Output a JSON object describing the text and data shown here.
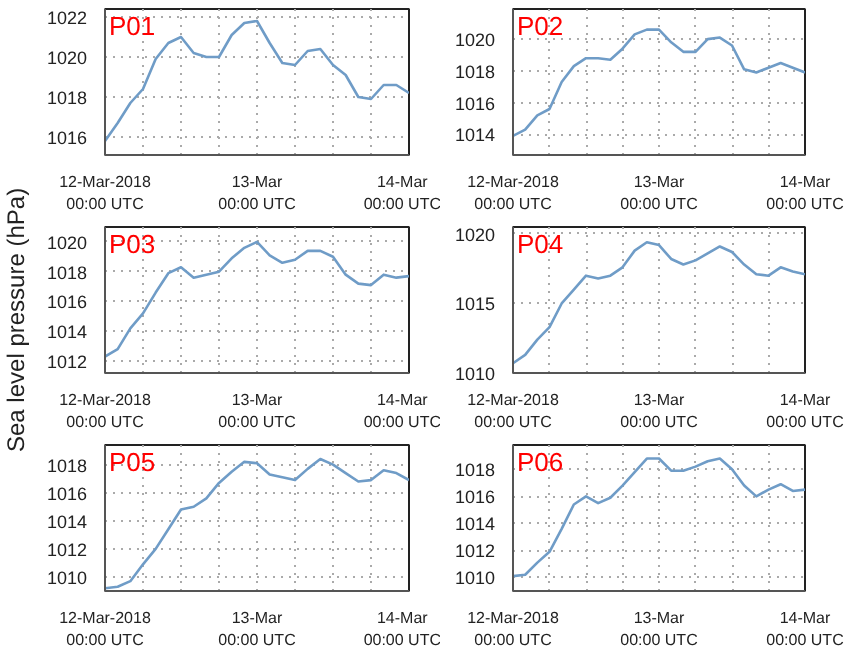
{
  "chart_data": [
    {
      "type": "line",
      "title": "P01",
      "x": [
        "2018-03-12T00:00",
        "2018-03-12T02:00",
        "2018-03-12T04:00",
        "2018-03-12T06:00",
        "2018-03-12T08:00",
        "2018-03-12T10:00",
        "2018-03-12T12:00",
        "2018-03-12T14:00",
        "2018-03-12T16:00",
        "2018-03-12T18:00",
        "2018-03-12T20:00",
        "2018-03-12T22:00",
        "2018-03-13T00:00",
        "2018-03-13T02:00",
        "2018-03-13T04:00",
        "2018-03-13T06:00",
        "2018-03-13T08:00",
        "2018-03-13T10:00",
        "2018-03-13T12:00",
        "2018-03-13T14:00",
        "2018-03-13T16:00",
        "2018-03-13T18:00",
        "2018-03-13T20:00",
        "2018-03-13T22:00",
        "2018-03-14T00:00"
      ],
      "xlim": [
        "2018-03-12T00:00",
        "2018-03-14T00:00"
      ],
      "xticks": [
        {
          "value": "2018-03-12T00:00",
          "label": "12-Mar-2018\n00:00 UTC"
        },
        {
          "value": "2018-03-12T06:00",
          "label": null
        },
        {
          "value": "2018-03-12T12:00",
          "label": null
        },
        {
          "value": "2018-03-12T18:00",
          "label": null
        },
        {
          "value": "2018-03-13T00:00",
          "label": "13-Mar\n00:00 UTC"
        },
        {
          "value": "2018-03-13T06:00",
          "label": null
        },
        {
          "value": "2018-03-13T12:00",
          "label": null
        },
        {
          "value": "2018-03-13T18:00",
          "label": null
        },
        {
          "value": "2018-03-14T00:00",
          "label": "14-Mar\n00:00 UTC"
        }
      ],
      "ylim": [
        1015.1,
        1022.4
      ],
      "yticks": [
        1016,
        1018,
        1020,
        1022
      ],
      "grid": true,
      "series": [
        {
          "color": "#6f9cc7",
          "values": [
            1015.8,
            1016.7,
            1017.7,
            1018.4,
            1019.9,
            1020.7,
            1021.0,
            1020.2,
            1020.0,
            1020.0,
            1021.1,
            1021.7,
            1021.8,
            1020.7,
            1019.7,
            1019.6,
            1020.3,
            1020.4,
            1019.6,
            1019.1,
            1018.0,
            1017.9,
            1018.6,
            1018.6,
            1018.2
          ]
        }
      ]
    },
    {
      "type": "line",
      "title": "P02",
      "x": [
        "2018-03-12T00:00",
        "2018-03-12T02:00",
        "2018-03-12T04:00",
        "2018-03-12T06:00",
        "2018-03-12T08:00",
        "2018-03-12T10:00",
        "2018-03-12T12:00",
        "2018-03-12T14:00",
        "2018-03-12T16:00",
        "2018-03-12T18:00",
        "2018-03-12T20:00",
        "2018-03-12T22:00",
        "2018-03-13T00:00",
        "2018-03-13T02:00",
        "2018-03-13T04:00",
        "2018-03-13T06:00",
        "2018-03-13T08:00",
        "2018-03-13T10:00",
        "2018-03-13T12:00",
        "2018-03-13T14:00",
        "2018-03-13T16:00",
        "2018-03-13T18:00",
        "2018-03-13T20:00",
        "2018-03-13T22:00",
        "2018-03-14T00:00"
      ],
      "xlim": [
        "2018-03-12T00:00",
        "2018-03-14T00:00"
      ],
      "xticks": [
        {
          "value": "2018-03-12T00:00",
          "label": "12-Mar-2018\n00:00 UTC"
        },
        {
          "value": "2018-03-12T06:00",
          "label": null
        },
        {
          "value": "2018-03-12T12:00",
          "label": null
        },
        {
          "value": "2018-03-12T18:00",
          "label": null
        },
        {
          "value": "2018-03-13T00:00",
          "label": "13-Mar\n00:00 UTC"
        },
        {
          "value": "2018-03-13T06:00",
          "label": null
        },
        {
          "value": "2018-03-13T12:00",
          "label": null
        },
        {
          "value": "2018-03-13T18:00",
          "label": null
        },
        {
          "value": "2018-03-14T00:00",
          "label": "14-Mar\n00:00 UTC"
        }
      ],
      "ylim": [
        1012.7,
        1021.9
      ],
      "yticks": [
        1014,
        1016,
        1018,
        1020
      ],
      "grid": true,
      "series": [
        {
          "color": "#6f9cc7",
          "values": [
            1013.9,
            1014.3,
            1015.2,
            1015.6,
            1017.3,
            1018.3,
            1018.8,
            1018.8,
            1018.7,
            1019.4,
            1020.3,
            1020.6,
            1020.6,
            1019.8,
            1019.2,
            1019.2,
            1020.0,
            1020.1,
            1019.6,
            1018.1,
            1017.9,
            1018.2,
            1018.5,
            1018.2,
            1017.9
          ]
        }
      ]
    },
    {
      "type": "line",
      "title": "P03",
      "ylabel": "Sea level pressure (hPa)",
      "x": [
        "2018-03-12T00:00",
        "2018-03-12T02:00",
        "2018-03-12T04:00",
        "2018-03-12T06:00",
        "2018-03-12T08:00",
        "2018-03-12T10:00",
        "2018-03-12T12:00",
        "2018-03-12T14:00",
        "2018-03-12T16:00",
        "2018-03-12T18:00",
        "2018-03-12T20:00",
        "2018-03-12T22:00",
        "2018-03-13T00:00",
        "2018-03-13T02:00",
        "2018-03-13T04:00",
        "2018-03-13T06:00",
        "2018-03-13T08:00",
        "2018-03-13T10:00",
        "2018-03-13T12:00",
        "2018-03-13T14:00",
        "2018-03-13T16:00",
        "2018-03-13T18:00",
        "2018-03-13T20:00",
        "2018-03-13T22:00",
        "2018-03-14T00:00"
      ],
      "xlim": [
        "2018-03-12T00:00",
        "2018-03-14T00:00"
      ],
      "xticks": [
        {
          "value": "2018-03-12T00:00",
          "label": "12-Mar-2018\n00:00 UTC"
        },
        {
          "value": "2018-03-12T06:00",
          "label": null
        },
        {
          "value": "2018-03-12T12:00",
          "label": null
        },
        {
          "value": "2018-03-12T18:00",
          "label": null
        },
        {
          "value": "2018-03-13T00:00",
          "label": "13-Mar\n00:00 UTC"
        },
        {
          "value": "2018-03-13T06:00",
          "label": null
        },
        {
          "value": "2018-03-13T12:00",
          "label": null
        },
        {
          "value": "2018-03-13T18:00",
          "label": null
        },
        {
          "value": "2018-03-14T00:00",
          "label": "14-Mar\n00:00 UTC"
        }
      ],
      "ylim": [
        1011.2,
        1021.0
      ],
      "yticks": [
        1012,
        1014,
        1016,
        1018,
        1020
      ],
      "grid": true,
      "series": [
        {
          "color": "#6f9cc7",
          "values": [
            1012.3,
            1012.8,
            1014.2,
            1015.2,
            1016.6,
            1017.9,
            1018.3,
            1017.6,
            1017.8,
            1018.0,
            1018.9,
            1019.6,
            1020.0,
            1019.1,
            1018.6,
            1018.8,
            1019.4,
            1019.4,
            1019.0,
            1017.8,
            1017.2,
            1017.1,
            1017.8,
            1017.6,
            1017.7
          ]
        }
      ]
    },
    {
      "type": "line",
      "title": "P04",
      "x": [
        "2018-03-12T00:00",
        "2018-03-12T02:00",
        "2018-03-12T04:00",
        "2018-03-12T06:00",
        "2018-03-12T08:00",
        "2018-03-12T10:00",
        "2018-03-12T12:00",
        "2018-03-12T14:00",
        "2018-03-12T16:00",
        "2018-03-12T18:00",
        "2018-03-12T20:00",
        "2018-03-12T22:00",
        "2018-03-13T00:00",
        "2018-03-13T02:00",
        "2018-03-13T04:00",
        "2018-03-13T06:00",
        "2018-03-13T08:00",
        "2018-03-13T10:00",
        "2018-03-13T12:00",
        "2018-03-13T14:00",
        "2018-03-13T16:00",
        "2018-03-13T18:00",
        "2018-03-13T20:00",
        "2018-03-13T22:00",
        "2018-03-14T00:00"
      ],
      "xlim": [
        "2018-03-12T00:00",
        "2018-03-14T00:00"
      ],
      "xticks": [
        {
          "value": "2018-03-12T00:00",
          "label": "12-Mar-2018\n00:00 UTC"
        },
        {
          "value": "2018-03-12T06:00",
          "label": null
        },
        {
          "value": "2018-03-12T12:00",
          "label": null
        },
        {
          "value": "2018-03-12T18:00",
          "label": null
        },
        {
          "value": "2018-03-13T00:00",
          "label": "13-Mar\n00:00 UTC"
        },
        {
          "value": "2018-03-13T06:00",
          "label": null
        },
        {
          "value": "2018-03-13T12:00",
          "label": null
        },
        {
          "value": "2018-03-13T18:00",
          "label": null
        },
        {
          "value": "2018-03-14T00:00",
          "label": "14-Mar\n00:00 UTC"
        }
      ],
      "ylim": [
        1010,
        1020.5
      ],
      "yticks": [
        1010,
        1015,
        1020
      ],
      "grid": true,
      "series": [
        {
          "color": "#6f9cc7",
          "values": [
            1010.7,
            1011.3,
            1012.4,
            1013.3,
            1015.0,
            1016.0,
            1017.0,
            1016.8,
            1017.0,
            1017.6,
            1018.8,
            1019.4,
            1019.2,
            1018.2,
            1017.8,
            1018.1,
            1018.6,
            1019.1,
            1018.7,
            1017.8,
            1017.1,
            1017.0,
            1017.6,
            1017.3,
            1017.1
          ]
        }
      ]
    },
    {
      "type": "line",
      "title": "P05",
      "x": [
        "2018-03-12T00:00",
        "2018-03-12T02:00",
        "2018-03-12T04:00",
        "2018-03-12T06:00",
        "2018-03-12T08:00",
        "2018-03-12T10:00",
        "2018-03-12T12:00",
        "2018-03-12T14:00",
        "2018-03-12T16:00",
        "2018-03-12T18:00",
        "2018-03-12T20:00",
        "2018-03-12T22:00",
        "2018-03-13T00:00",
        "2018-03-13T02:00",
        "2018-03-13T04:00",
        "2018-03-13T06:00",
        "2018-03-13T08:00",
        "2018-03-13T10:00",
        "2018-03-13T12:00",
        "2018-03-13T14:00",
        "2018-03-13T16:00",
        "2018-03-13T18:00",
        "2018-03-13T20:00",
        "2018-03-13T22:00",
        "2018-03-14T00:00"
      ],
      "xlim": [
        "2018-03-12T00:00",
        "2018-03-14T00:00"
      ],
      "xticks": [
        {
          "value": "2018-03-12T00:00",
          "label": "12-Mar-2018\n00:00 UTC"
        },
        {
          "value": "2018-03-12T06:00",
          "label": null
        },
        {
          "value": "2018-03-12T12:00",
          "label": null
        },
        {
          "value": "2018-03-12T18:00",
          "label": null
        },
        {
          "value": "2018-03-13T00:00",
          "label": "13-Mar\n00:00 UTC"
        },
        {
          "value": "2018-03-13T06:00",
          "label": null
        },
        {
          "value": "2018-03-13T12:00",
          "label": null
        },
        {
          "value": "2018-03-13T18:00",
          "label": null
        },
        {
          "value": "2018-03-14T00:00",
          "label": "14-Mar\n00:00 UTC"
        }
      ],
      "ylim": [
        1009.0,
        1019.4
      ],
      "yticks": [
        1010,
        1012,
        1014,
        1016,
        1018
      ],
      "grid": true,
      "series": [
        {
          "color": "#6f9cc7",
          "values": [
            1009.2,
            1009.3,
            1009.7,
            1010.9,
            1012.0,
            1013.4,
            1014.8,
            1015.0,
            1015.6,
            1016.7,
            1017.5,
            1018.2,
            1018.1,
            1017.3,
            1017.1,
            1016.9,
            1017.7,
            1018.4,
            1018.0,
            1017.4,
            1016.8,
            1016.9,
            1017.6,
            1017.4,
            1016.9
          ]
        }
      ]
    },
    {
      "type": "line",
      "title": "P06",
      "x": [
        "2018-03-12T00:00",
        "2018-03-12T02:00",
        "2018-03-12T04:00",
        "2018-03-12T06:00",
        "2018-03-12T08:00",
        "2018-03-12T10:00",
        "2018-03-12T12:00",
        "2018-03-12T14:00",
        "2018-03-12T16:00",
        "2018-03-12T18:00",
        "2018-03-12T20:00",
        "2018-03-12T22:00",
        "2018-03-13T00:00",
        "2018-03-13T02:00",
        "2018-03-13T04:00",
        "2018-03-13T06:00",
        "2018-03-13T08:00",
        "2018-03-13T10:00",
        "2018-03-13T12:00",
        "2018-03-13T14:00",
        "2018-03-13T16:00",
        "2018-03-13T18:00",
        "2018-03-13T20:00",
        "2018-03-13T22:00",
        "2018-03-14T00:00"
      ],
      "xlim": [
        "2018-03-12T00:00",
        "2018-03-14T00:00"
      ],
      "xticks": [
        {
          "value": "2018-03-12T00:00",
          "label": "12-Mar-2018\n00:00 UTC"
        },
        {
          "value": "2018-03-12T06:00",
          "label": null
        },
        {
          "value": "2018-03-12T12:00",
          "label": null
        },
        {
          "value": "2018-03-12T18:00",
          "label": null
        },
        {
          "value": "2018-03-13T00:00",
          "label": "13-Mar\n00:00 UTC"
        },
        {
          "value": "2018-03-13T06:00",
          "label": null
        },
        {
          "value": "2018-03-13T12:00",
          "label": null
        },
        {
          "value": "2018-03-13T18:00",
          "label": null
        },
        {
          "value": "2018-03-14T00:00",
          "label": "14-Mar\n00:00 UTC"
        }
      ],
      "ylim": [
        1009.0,
        1019.8
      ],
      "yticks": [
        1010,
        1012,
        1014,
        1016,
        1018
      ],
      "grid": true,
      "series": [
        {
          "color": "#6f9cc7",
          "values": [
            1010.1,
            1010.2,
            1011.1,
            1011.9,
            1013.6,
            1015.4,
            1016.0,
            1015.5,
            1015.9,
            1016.8,
            1017.8,
            1018.8,
            1018.8,
            1017.9,
            1017.9,
            1018.2,
            1018.6,
            1018.8,
            1018.0,
            1016.8,
            1016.0,
            1016.5,
            1016.9,
            1016.4,
            1016.5
          ]
        }
      ]
    }
  ]
}
